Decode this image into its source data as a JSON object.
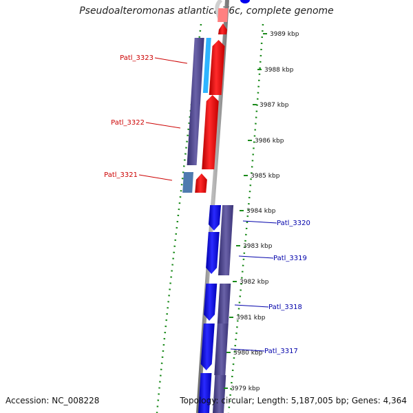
{
  "title": "Pseudoalteromonas atlantica T6c, complete genome",
  "footer": {
    "accession": "Accession: NC_008228",
    "topology": "Topology: circular; Length: 5,187,005 bp; Genes: 4,364"
  },
  "scale_ticks": [
    {
      "label": "3989 kbp",
      "kbp": 3989
    },
    {
      "label": "3988 kbp",
      "kbp": 3988
    },
    {
      "label": "3987 kbp",
      "kbp": 3987
    },
    {
      "label": "3986 kbp",
      "kbp": 3986
    },
    {
      "label": "3985 kbp",
      "kbp": 3985
    },
    {
      "label": "3984 kbp",
      "kbp": 3984
    },
    {
      "label": "3983 kbp",
      "kbp": 3983
    },
    {
      "label": "3982 kbp",
      "kbp": 3982
    },
    {
      "label": "3981 kbp",
      "kbp": 3981
    },
    {
      "label": "3980 kbp",
      "kbp": 3980
    },
    {
      "label": "3979 kbp",
      "kbp": 3979
    }
  ],
  "genes": [
    {
      "name": "Patl_3323",
      "strand": "reverse",
      "color": "#cc0000"
    },
    {
      "name": "Patl_3322",
      "strand": "reverse",
      "color": "#cc0000"
    },
    {
      "name": "Patl_3321",
      "strand": "reverse",
      "color": "#cc0000"
    },
    {
      "name": "Patl_3320",
      "strand": "forward",
      "color": "#0000aa"
    },
    {
      "name": "Patl_3319",
      "strand": "forward",
      "color": "#0000aa"
    },
    {
      "name": "Patl_3318",
      "strand": "forward",
      "color": "#0000aa"
    },
    {
      "name": "Patl_3317",
      "strand": "forward",
      "color": "#0000aa"
    }
  ],
  "colors": {
    "reverse_cds": "#ff0000",
    "forward_cds": "#0000ee",
    "cog_band": "#4b4488",
    "cog_alt": "#3fa9f5",
    "backbone": "#8c8c8c",
    "dots": "#1a8a1a"
  }
}
